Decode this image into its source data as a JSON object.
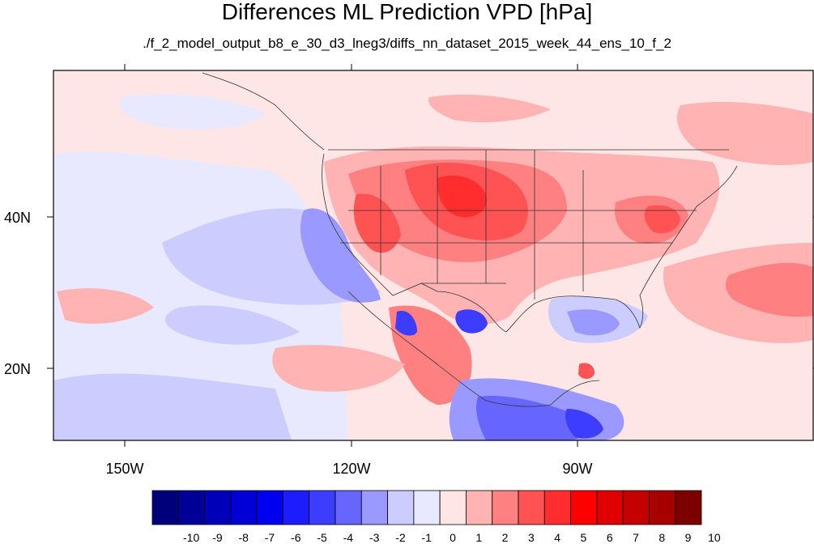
{
  "title": "Differences ML Prediction VPD [hPa]",
  "subtitle": "./f_2_model_output_b8_e_30_d3_lneg3/diffs_nn_dataset_2015_week_44_ens_10_f_2",
  "axes": {
    "lon_labels": [
      "150W",
      "120W",
      "90W"
    ],
    "lat_labels": [
      "40N",
      "20N"
    ]
  },
  "colorbar": {
    "labels": [
      "-10",
      "-9",
      "-8",
      "-7",
      "-6",
      "-5",
      "-4",
      "-3",
      "-2",
      "-1",
      "0",
      "1",
      "2",
      "3",
      "4",
      "5",
      "6",
      "7",
      "8",
      "9",
      "10"
    ],
    "colors": [
      "#00007a",
      "#000099",
      "#0000b8",
      "#0000d6",
      "#0000f0",
      "#1c1cff",
      "#3d3dff",
      "#6666ff",
      "#9999ff",
      "#ccccff",
      "#e8e8ff",
      "#ffe6e6",
      "#ffb3b3",
      "#ff8080",
      "#ff5252",
      "#ff2d2d",
      "#ff0000",
      "#e00000",
      "#c40000",
      "#a80000",
      "#7d0000"
    ]
  }
}
